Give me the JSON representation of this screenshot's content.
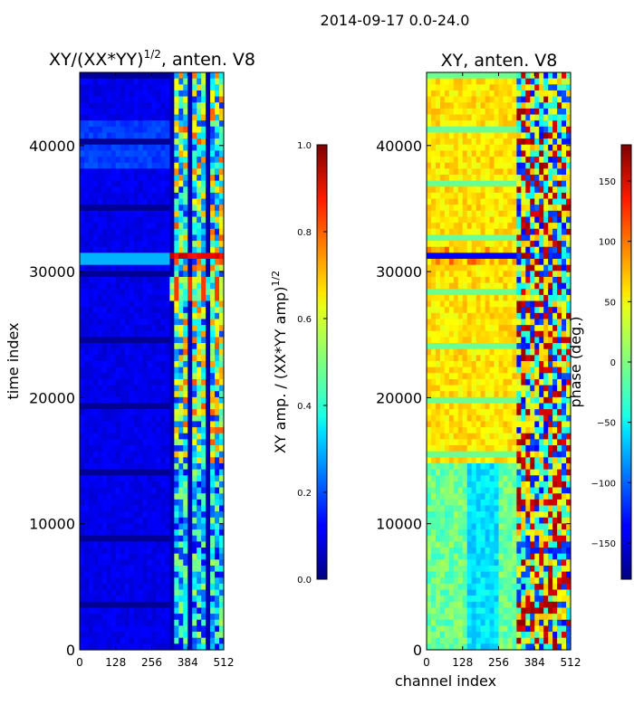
{
  "figure_title": "2014-09-17 0.0-24.0",
  "chart_data": [
    {
      "type": "heatmap",
      "title": "XY/(XX*YY)^1/2, anten. V8",
      "title_base": "XY/(XX*YY)",
      "title_sup": "1/2",
      "title_tail": ", anten. V8",
      "xlabel": "",
      "ylabel": "time index",
      "xlim": [
        0,
        512
      ],
      "ylim": [
        0,
        45800
      ],
      "xticks": [
        0,
        128,
        256,
        384,
        512
      ],
      "yticks": [
        0,
        10000,
        20000,
        30000,
        40000
      ],
      "colorbar": {
        "label": "XY amp. / (XX*YY amp)^1/2",
        "label_base": "XY amp. / (XX*YY amp)",
        "label_sup": "1/2",
        "range": [
          0.0,
          1.0
        ],
        "ticks": [
          "0.0",
          "0.2",
          "0.4",
          "0.6",
          "0.8",
          "1.0"
        ],
        "colormap": "jet"
      },
      "features": [
        {
          "channels": [
            0,
            320
          ],
          "time": [
            0,
            45800
          ],
          "value": 0.1
        },
        {
          "channels": [
            320,
            512
          ],
          "time": [
            0,
            45800
          ],
          "value": 0.55,
          "note": "high-amplitude striped band"
        },
        {
          "channels": [
            320,
            512
          ],
          "time": [
            30800,
            31600
          ],
          "value": 0.9
        }
      ]
    },
    {
      "type": "heatmap",
      "title": "XY, anten. V8",
      "xlabel": "channel index",
      "ylabel": "",
      "xlim": [
        0,
        512
      ],
      "ylim": [
        0,
        45800
      ],
      "xticks": [
        0,
        128,
        256,
        384,
        512
      ],
      "yticks": [
        0,
        10000,
        20000,
        30000,
        40000
      ],
      "colorbar": {
        "label": "phase (deg.)",
        "range": [
          -180,
          180
        ],
        "ticks": [
          "−150",
          "−100",
          "−50",
          "0",
          "50",
          "100",
          "150"
        ],
        "colormap": "jet"
      },
      "features": [
        {
          "channels": [
            0,
            320
          ],
          "time": [
            0,
            15000
          ],
          "value": -10
        },
        {
          "channels": [
            0,
            320
          ],
          "time": [
            15000,
            45800
          ],
          "value": 55
        },
        {
          "channels": [
            320,
            512
          ],
          "time": [
            0,
            45800
          ],
          "value": 0,
          "note": "phase wrapping band, full range"
        }
      ]
    }
  ]
}
